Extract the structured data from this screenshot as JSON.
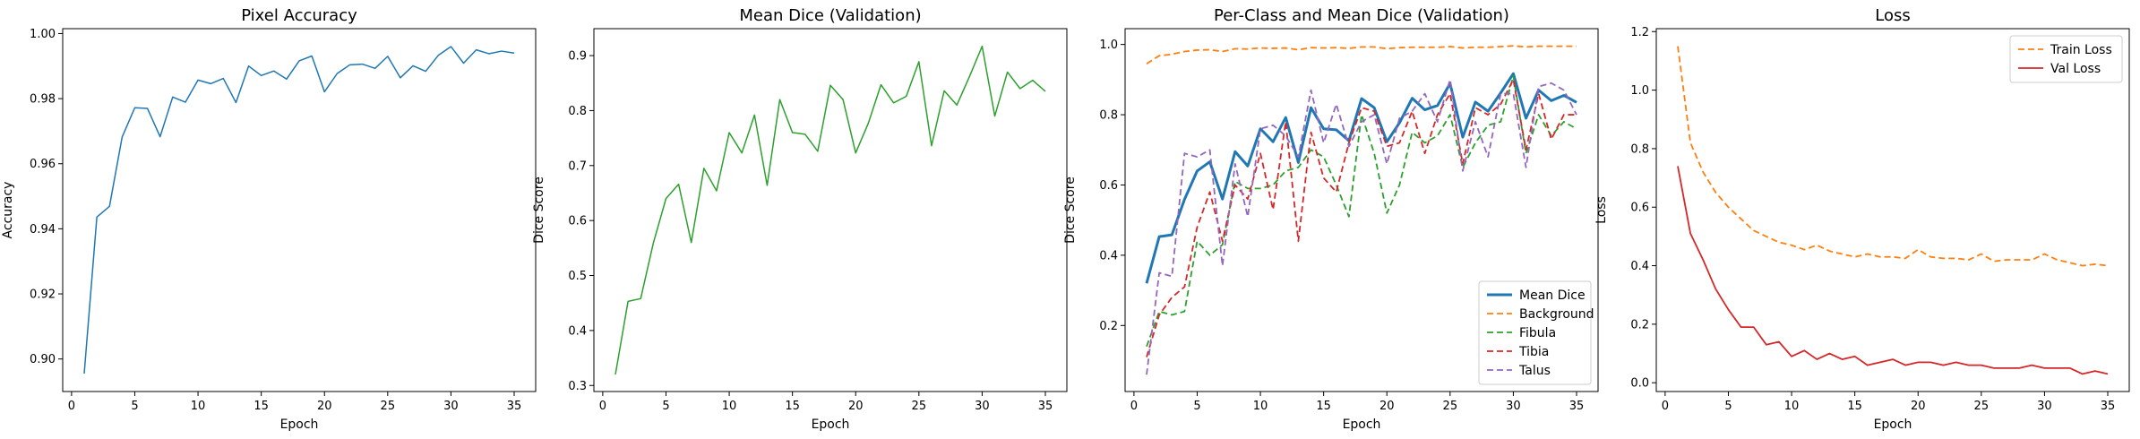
{
  "chart_data": [
    {
      "type": "line",
      "title": "Pixel Accuracy",
      "xlabel": "Epoch",
      "ylabel": "Accuracy",
      "xlim": [
        -0.7,
        36.7
      ],
      "ylim": [
        0.89,
        1.0015
      ],
      "xticks": [
        0,
        5,
        10,
        15,
        20,
        25,
        30,
        35
      ],
      "yticks": [
        0.9,
        0.92,
        0.94,
        0.96,
        0.98,
        1.0
      ],
      "ytick_decimals": 2,
      "grid": false,
      "legend": null,
      "x": [
        1,
        2,
        3,
        4,
        5,
        6,
        7,
        8,
        9,
        10,
        11,
        12,
        13,
        14,
        15,
        16,
        17,
        18,
        19,
        20,
        21,
        22,
        23,
        24,
        25,
        26,
        27,
        28,
        29,
        30,
        31,
        32,
        33,
        34,
        35
      ],
      "series": [
        {
          "color": "#1f77b4",
          "dash": "",
          "width": 1.5,
          "values": [
            0.8955,
            0.9436,
            0.9469,
            0.9682,
            0.9772,
            0.977,
            0.9683,
            0.9805,
            0.9789,
            0.9857,
            0.9846,
            0.9862,
            0.9788,
            0.99,
            0.9871,
            0.9885,
            0.986,
            0.9916,
            0.9931,
            0.9821,
            0.9877,
            0.9904,
            0.9906,
            0.9893,
            0.993,
            0.9864,
            0.9901,
            0.9884,
            0.9933,
            0.996,
            0.9909,
            0.995,
            0.9938,
            0.9946,
            0.994
          ]
        }
      ]
    },
    {
      "type": "line",
      "title": "Mean Dice (Validation)",
      "xlabel": "Epoch",
      "ylabel": "Dice Score",
      "xlim": [
        -0.7,
        36.7
      ],
      "ylim": [
        0.289,
        0.949
      ],
      "xticks": [
        0,
        5,
        10,
        15,
        20,
        25,
        30,
        35
      ],
      "yticks": [
        0.3,
        0.4,
        0.5,
        0.6,
        0.7,
        0.8,
        0.9
      ],
      "ytick_decimals": 1,
      "grid": false,
      "legend": null,
      "x": [
        1,
        2,
        3,
        4,
        5,
        6,
        7,
        8,
        9,
        10,
        11,
        12,
        13,
        14,
        15,
        16,
        17,
        18,
        19,
        20,
        21,
        22,
        23,
        24,
        25,
        26,
        27,
        28,
        29,
        30,
        31,
        32,
        33,
        34,
        35
      ],
      "series": [
        {
          "color": "#2ca02c",
          "dash": "",
          "width": 1.5,
          "values": [
            0.32,
            0.453,
            0.458,
            0.559,
            0.64,
            0.666,
            0.56,
            0.695,
            0.654,
            0.76,
            0.723,
            0.792,
            0.664,
            0.82,
            0.76,
            0.757,
            0.726,
            0.846,
            0.82,
            0.723,
            0.777,
            0.847,
            0.814,
            0.826,
            0.889,
            0.736,
            0.836,
            0.81,
            0.862,
            0.917,
            0.79,
            0.87,
            0.84,
            0.855,
            0.835
          ]
        }
      ]
    },
    {
      "type": "line",
      "title": "Per-Class and Mean Dice (Validation)",
      "xlabel": "Epoch",
      "ylabel": "Dice Score",
      "xlim": [
        -0.7,
        36.7
      ],
      "ylim": [
        0.012,
        1.045
      ],
      "xticks": [
        0,
        5,
        10,
        15,
        20,
        25,
        30,
        35
      ],
      "yticks": [
        0.2,
        0.4,
        0.6,
        0.8,
        1.0
      ],
      "ytick_decimals": 1,
      "grid": false,
      "legend": "lower right",
      "x": [
        1,
        2,
        3,
        4,
        5,
        6,
        7,
        8,
        9,
        10,
        11,
        12,
        13,
        14,
        15,
        16,
        17,
        18,
        19,
        20,
        21,
        22,
        23,
        24,
        25,
        26,
        27,
        28,
        29,
        30,
        31,
        32,
        33,
        34,
        35
      ],
      "series": [
        {
          "name": "Mean Dice",
          "color": "#1f77b4",
          "dash": "",
          "width": 3,
          "values": [
            0.32,
            0.453,
            0.458,
            0.559,
            0.64,
            0.666,
            0.56,
            0.695,
            0.654,
            0.76,
            0.723,
            0.792,
            0.664,
            0.82,
            0.76,
            0.757,
            0.726,
            0.846,
            0.82,
            0.723,
            0.777,
            0.847,
            0.814,
            0.826,
            0.889,
            0.736,
            0.836,
            0.81,
            0.862,
            0.917,
            0.79,
            0.87,
            0.84,
            0.855,
            0.835
          ]
        },
        {
          "name": "Background",
          "color": "#ff7f0e",
          "dash": "7,4",
          "width": 1.8,
          "values": [
            0.945,
            0.968,
            0.972,
            0.98,
            0.984,
            0.985,
            0.98,
            0.988,
            0.987,
            0.99,
            0.989,
            0.99,
            0.985,
            0.991,
            0.99,
            0.991,
            0.989,
            0.993,
            0.993,
            0.988,
            0.991,
            0.992,
            0.992,
            0.992,
            0.994,
            0.99,
            0.992,
            0.992,
            0.994,
            0.996,
            0.993,
            0.995,
            0.995,
            0.995,
            0.995
          ]
        },
        {
          "name": "Fibula",
          "color": "#2ca02c",
          "dash": "7,4",
          "width": 1.8,
          "values": [
            0.14,
            0.24,
            0.23,
            0.24,
            0.44,
            0.4,
            0.43,
            0.61,
            0.59,
            0.59,
            0.6,
            0.64,
            0.65,
            0.7,
            0.68,
            0.6,
            0.51,
            0.8,
            0.69,
            0.52,
            0.6,
            0.75,
            0.72,
            0.74,
            0.8,
            0.65,
            0.72,
            0.77,
            0.78,
            0.91,
            0.69,
            0.8,
            0.74,
            0.78,
            0.76
          ]
        },
        {
          "name": "Tibia",
          "color": "#d62728",
          "dash": "7,4",
          "width": 1.8,
          "values": [
            0.11,
            0.23,
            0.28,
            0.31,
            0.48,
            0.58,
            0.44,
            0.6,
            0.56,
            0.69,
            0.53,
            0.78,
            0.44,
            0.75,
            0.62,
            0.58,
            0.72,
            0.82,
            0.81,
            0.71,
            0.72,
            0.81,
            0.69,
            0.8,
            0.86,
            0.66,
            0.82,
            0.8,
            0.83,
            0.9,
            0.7,
            0.86,
            0.73,
            0.8,
            0.8
          ]
        },
        {
          "name": "Talus",
          "color": "#9467bd",
          "dash": "7,4",
          "width": 1.8,
          "values": [
            0.06,
            0.35,
            0.34,
            0.69,
            0.68,
            0.7,
            0.37,
            0.66,
            0.51,
            0.76,
            0.77,
            0.74,
            0.68,
            0.87,
            0.72,
            0.83,
            0.71,
            0.78,
            0.8,
            0.66,
            0.79,
            0.81,
            0.86,
            0.78,
            0.9,
            0.64,
            0.78,
            0.68,
            0.86,
            0.86,
            0.65,
            0.88,
            0.89,
            0.87,
            0.8
          ]
        }
      ]
    },
    {
      "type": "line",
      "title": "Loss",
      "xlabel": "Epoch",
      "ylabel": "Loss",
      "xlim": [
        -0.7,
        36.7
      ],
      "ylim": [
        -0.03,
        1.21
      ],
      "xticks": [
        0,
        5,
        10,
        15,
        20,
        25,
        30,
        35
      ],
      "yticks": [
        0.0,
        0.2,
        0.4,
        0.6,
        0.8,
        1.0,
        1.2
      ],
      "ytick_decimals": 1,
      "grid": false,
      "legend": "upper right",
      "x": [
        1,
        2,
        3,
        4,
        5,
        6,
        7,
        8,
        9,
        10,
        11,
        12,
        13,
        14,
        15,
        16,
        17,
        18,
        19,
        20,
        21,
        22,
        23,
        24,
        25,
        26,
        27,
        28,
        29,
        30,
        31,
        32,
        33,
        34,
        35
      ],
      "series": [
        {
          "name": "Train Loss",
          "color": "#ff7f0e",
          "dash": "7,4",
          "width": 1.8,
          "values": [
            1.15,
            0.82,
            0.72,
            0.65,
            0.6,
            0.56,
            0.52,
            0.5,
            0.48,
            0.47,
            0.455,
            0.47,
            0.45,
            0.44,
            0.43,
            0.44,
            0.43,
            0.43,
            0.425,
            0.455,
            0.43,
            0.425,
            0.425,
            0.42,
            0.44,
            0.415,
            0.42,
            0.42,
            0.42,
            0.44,
            0.42,
            0.41,
            0.4,
            0.405,
            0.4
          ]
        },
        {
          "name": "Val Loss",
          "color": "#d62728",
          "dash": "",
          "width": 1.8,
          "values": [
            0.74,
            0.51,
            0.42,
            0.32,
            0.25,
            0.19,
            0.19,
            0.13,
            0.14,
            0.09,
            0.11,
            0.08,
            0.1,
            0.08,
            0.09,
            0.06,
            0.07,
            0.08,
            0.06,
            0.07,
            0.07,
            0.06,
            0.07,
            0.06,
            0.06,
            0.05,
            0.05,
            0.05,
            0.06,
            0.05,
            0.05,
            0.05,
            0.03,
            0.04,
            0.03
          ]
        }
      ]
    }
  ]
}
